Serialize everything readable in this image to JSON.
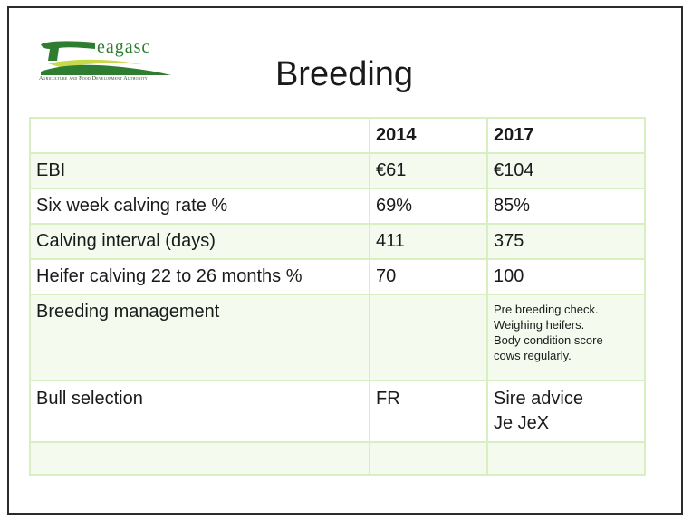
{
  "logo": {
    "word": "eagasc",
    "tagline": "Agriculture and Food Development Authority",
    "colors": {
      "green": "#2f7d31",
      "yellow": "#c8d94a"
    }
  },
  "title": "Breeding",
  "table": {
    "header": [
      "",
      "2014",
      "2017"
    ],
    "rows": [
      {
        "label": "EBI",
        "y2014": "€61",
        "y2017": "€104"
      },
      {
        "label": "Six week calving rate %",
        "y2014": "69%",
        "y2017": "85%"
      },
      {
        "label": "Calving interval (days)",
        "y2014": "411",
        "y2017": "375"
      },
      {
        "label": "Heifer calving 22 to 26 months %",
        "y2014": "70",
        "y2017": "100"
      }
    ],
    "management": {
      "label": "Breeding management",
      "y2014": "",
      "y2017": [
        "Pre breeding check.",
        "Weighing heifers.",
        "Body condition score",
        "cows regularly."
      ]
    },
    "bull": {
      "label": "Bull selection",
      "y2014": "FR",
      "y2017": [
        "Sire advice",
        "Je JeX"
      ]
    }
  },
  "colors": {
    "grid": "#d8efc1",
    "row_fill": "#f4faee",
    "text": "#1a1a1a"
  }
}
